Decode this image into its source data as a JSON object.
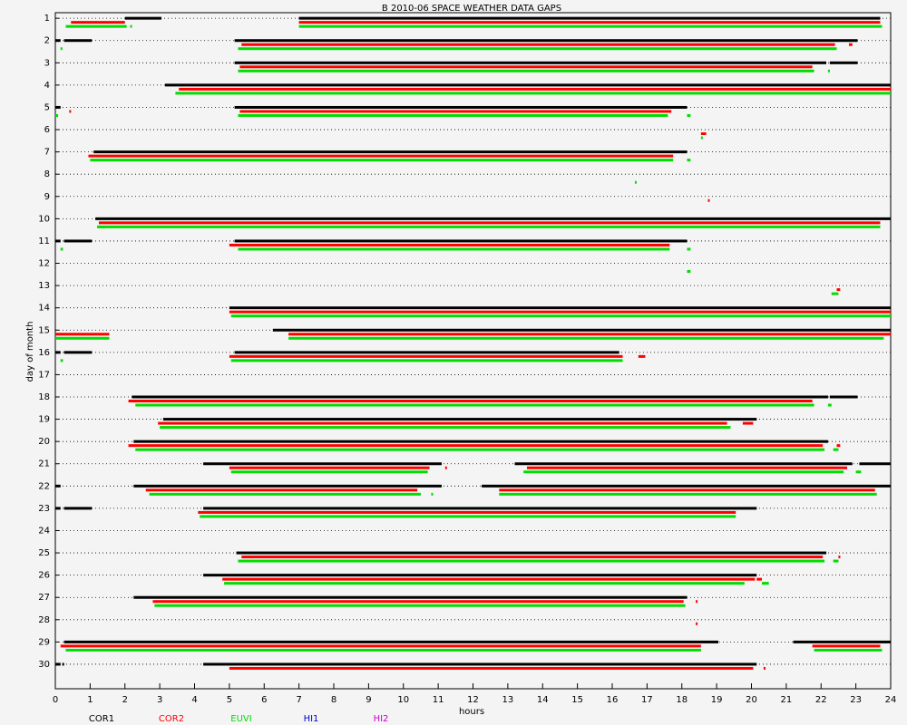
{
  "chart_data": {
    "type": "timeline",
    "title": "B  2010-06 SPACE WEATHER DATA GAPS",
    "xlabel": "hours",
    "ylabel": "day of month",
    "xlim": [
      0,
      24
    ],
    "xticks": [
      0,
      1,
      2,
      3,
      4,
      5,
      6,
      7,
      8,
      9,
      10,
      11,
      12,
      13,
      14,
      15,
      16,
      17,
      18,
      19,
      20,
      21,
      22,
      23,
      24
    ],
    "ylim": [
      31.1,
      0.75
    ],
    "yticks": [
      1,
      2,
      3,
      4,
      5,
      6,
      7,
      8,
      9,
      10,
      11,
      12,
      13,
      14,
      15,
      16,
      17,
      18,
      19,
      20,
      21,
      22,
      23,
      24,
      25,
      26,
      27,
      28,
      29,
      30
    ],
    "grid": true,
    "series": [
      {
        "name": "COR1",
        "color": "#000000",
        "gaps": [
          [
            1,
            2.0,
            3.05
          ],
          [
            1,
            7.0,
            23.7
          ],
          [
            2,
            0,
            0.15
          ],
          [
            2,
            0.25,
            1.05
          ],
          [
            2,
            5.15,
            23.05
          ],
          [
            3,
            5.15,
            22.15
          ],
          [
            3,
            22.25,
            23.05
          ],
          [
            4,
            3.15,
            24
          ],
          [
            5,
            0,
            0.15
          ],
          [
            5,
            5.15,
            18.15
          ],
          [
            7,
            1.1,
            18.15
          ],
          [
            10,
            1.15,
            24
          ],
          [
            11,
            0,
            0.15
          ],
          [
            11,
            0.25,
            1.05
          ],
          [
            11,
            5.15,
            18.15
          ],
          [
            14,
            5.0,
            24
          ],
          [
            15,
            6.25,
            24
          ],
          [
            16,
            0,
            0.15
          ],
          [
            16,
            0.25,
            1.05
          ],
          [
            16,
            5.15,
            16.2
          ],
          [
            18,
            2.2,
            22.2
          ],
          [
            18,
            22.25,
            23.05
          ],
          [
            19,
            3.1,
            20.15
          ],
          [
            20,
            2.25,
            22.2
          ],
          [
            21,
            4.25,
            11.1
          ],
          [
            21,
            13.2,
            22.9
          ],
          [
            21,
            23.1,
            24
          ],
          [
            22,
            0,
            0.15
          ],
          [
            22,
            2.25,
            11.1
          ],
          [
            22,
            12.25,
            24
          ],
          [
            23,
            0,
            0.15
          ],
          [
            23,
            0.25,
            1.05
          ],
          [
            23,
            4.25,
            20.15
          ],
          [
            25,
            5.2,
            22.15
          ],
          [
            26,
            4.25,
            20.15
          ],
          [
            27,
            2.25,
            18.15
          ],
          [
            29,
            0.25,
            19.05
          ],
          [
            29,
            21.2,
            24
          ],
          [
            30,
            0,
            0.15
          ],
          [
            30,
            0.2,
            0.25
          ],
          [
            30,
            4.25,
            20.15
          ]
        ]
      },
      {
        "name": "COR2",
        "color": "#ff0000",
        "gaps": [
          [
            1,
            0.45,
            2.0
          ],
          [
            1,
            7.0,
            23.7
          ],
          [
            2,
            5.35,
            22.4
          ],
          [
            2,
            22.8,
            22.9
          ],
          [
            3,
            5.3,
            21.75
          ],
          [
            4,
            3.55,
            24
          ],
          [
            5,
            0.4,
            0.42
          ],
          [
            5,
            5.3,
            17.7
          ],
          [
            6,
            18.55,
            18.7
          ],
          [
            7,
            0.95,
            17.75
          ],
          [
            9,
            18.75,
            18.8
          ],
          [
            10,
            1.25,
            23.7
          ],
          [
            11,
            5.0,
            17.65
          ],
          [
            13,
            22.45,
            22.55
          ],
          [
            14,
            5.0,
            24
          ],
          [
            15,
            0,
            1.55
          ],
          [
            15,
            6.7,
            24
          ],
          [
            16,
            5.0,
            16.3
          ],
          [
            16,
            16.75,
            16.95
          ],
          [
            18,
            2.1,
            21.75
          ],
          [
            19,
            2.95,
            19.3
          ],
          [
            19,
            19.75,
            20.05
          ],
          [
            20,
            2.1,
            22.05
          ],
          [
            20,
            22.45,
            22.55
          ],
          [
            21,
            5.0,
            10.75
          ],
          [
            21,
            11.2,
            11.25
          ],
          [
            21,
            13.55,
            22.75
          ],
          [
            22,
            2.6,
            10.4
          ],
          [
            22,
            12.75,
            23.55
          ],
          [
            23,
            4.1,
            19.55
          ],
          [
            25,
            5.35,
            22.05
          ],
          [
            25,
            22.5,
            22.55
          ],
          [
            26,
            4.8,
            20.1
          ],
          [
            26,
            20.15,
            20.3
          ],
          [
            27,
            2.8,
            18.05
          ],
          [
            27,
            18.4,
            18.45
          ],
          [
            28,
            18.4,
            18.45
          ],
          [
            29,
            0.15,
            18.55
          ],
          [
            29,
            21.75,
            23.7
          ],
          [
            30,
            5.0,
            20.05
          ],
          [
            30,
            20.35,
            20.4
          ]
        ]
      },
      {
        "name": "EUVI",
        "color": "#00dd00",
        "gaps": [
          [
            1,
            0.3,
            2.05
          ],
          [
            1,
            2.15,
            2.2
          ],
          [
            1,
            7.0,
            23.75
          ],
          [
            2,
            0.15,
            0.2
          ],
          [
            2,
            5.25,
            22.45
          ],
          [
            3,
            5.25,
            21.8
          ],
          [
            3,
            22.2,
            22.25
          ],
          [
            4,
            3.45,
            24
          ],
          [
            5,
            0,
            0.08
          ],
          [
            5,
            5.25,
            17.6
          ],
          [
            5,
            18.15,
            18.25
          ],
          [
            6,
            18.55,
            18.6
          ],
          [
            7,
            1.0,
            17.75
          ],
          [
            7,
            18.15,
            18.25
          ],
          [
            8,
            16.65,
            16.7
          ],
          [
            10,
            1.2,
            23.7
          ],
          [
            11,
            0.15,
            0.22
          ],
          [
            11,
            5.25,
            17.65
          ],
          [
            11,
            18.15,
            18.25
          ],
          [
            12,
            18.15,
            18.25
          ],
          [
            13,
            22.3,
            22.5
          ],
          [
            14,
            5.05,
            24
          ],
          [
            15,
            0,
            1.55
          ],
          [
            15,
            6.7,
            23.8
          ],
          [
            16,
            0.15,
            0.22
          ],
          [
            16,
            5.05,
            16.3
          ],
          [
            18,
            2.3,
            21.8
          ],
          [
            18,
            22.2,
            22.3
          ],
          [
            19,
            3.0,
            19.4
          ],
          [
            20,
            2.3,
            22.1
          ],
          [
            20,
            22.35,
            22.5
          ],
          [
            21,
            5.05,
            10.7
          ],
          [
            21,
            13.45,
            22.65
          ],
          [
            21,
            23.0,
            23.15
          ],
          [
            22,
            2.7,
            10.5
          ],
          [
            22,
            10.8,
            10.85
          ],
          [
            22,
            12.75,
            23.6
          ],
          [
            23,
            4.15,
            19.55
          ],
          [
            25,
            5.25,
            22.1
          ],
          [
            25,
            22.35,
            22.5
          ],
          [
            26,
            4.85,
            19.8
          ],
          [
            26,
            20.3,
            20.5
          ],
          [
            27,
            2.85,
            18.1
          ],
          [
            29,
            0.3,
            18.55
          ],
          [
            29,
            21.8,
            23.75
          ]
        ]
      },
      {
        "name": "HI1",
        "color": "#0000cc",
        "gaps": []
      },
      {
        "name": "HI2",
        "color": "#cc00cc",
        "gaps": []
      }
    ]
  }
}
